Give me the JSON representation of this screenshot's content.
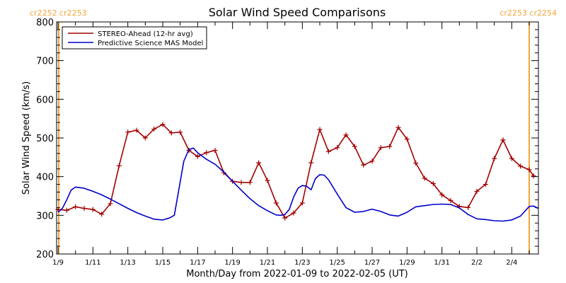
{
  "chart_data": {
    "type": "line",
    "title": "Solar Wind Speed Comparisons",
    "xlabel": "Month/Day from 2022-01-09 to 2022-02-05 (UT)",
    "ylabel": "Solar Wind Speed (km/s)",
    "ylim": [
      200,
      800
    ],
    "xlim": [
      "2022-01-09",
      "2022-02-05"
    ],
    "x_ticks": [
      "1/9",
      "1/11",
      "1/13",
      "1/15",
      "1/17",
      "1/19",
      "1/21",
      "1/23",
      "1/25",
      "1/27",
      "1/29",
      "1/31",
      "2/2",
      "2/4"
    ],
    "y_ticks": [
      "200",
      "300",
      "400",
      "500",
      "600",
      "700",
      "800"
    ],
    "legend_position": "top-left",
    "carrington": {
      "left": "cr2252 cr2253",
      "right": "cr2253 cr2254",
      "color": "#f2a53a"
    },
    "series": [
      {
        "name": "STEREO-Ahead (12-hr avg)",
        "color": "#a40000",
        "marker": "+",
        "points": [
          [
            "2022-01-09",
            315
          ],
          [
            "2022-01-09 12:00",
            313
          ],
          [
            "2022-01-10",
            322
          ],
          [
            "2022-01-10 12:00",
            318
          ],
          [
            "2022-01-11",
            315
          ],
          [
            "2022-01-11 12:00",
            303
          ],
          [
            "2022-01-12",
            330
          ],
          [
            "2022-01-12 12:00",
            428
          ],
          [
            "2022-01-13",
            515
          ],
          [
            "2022-01-13 12:00",
            520
          ],
          [
            "2022-01-14",
            500
          ],
          [
            "2022-01-14 12:00",
            523
          ],
          [
            "2022-01-15",
            535
          ],
          [
            "2022-01-15 12:00",
            513
          ],
          [
            "2022-01-16",
            515
          ],
          [
            "2022-01-16 12:00",
            468
          ],
          [
            "2022-01-17",
            452
          ],
          [
            "2022-01-17 12:00",
            462
          ],
          [
            "2022-01-18",
            468
          ],
          [
            "2022-01-18 12:00",
            410
          ],
          [
            "2022-01-19",
            388
          ],
          [
            "2022-01-19 12:00",
            385
          ],
          [
            "2022-01-20",
            385
          ],
          [
            "2022-01-20 12:00",
            436
          ],
          [
            "2022-01-21",
            390
          ],
          [
            "2022-01-21 12:00",
            332
          ],
          [
            "2022-01-22",
            293
          ],
          [
            "2022-01-22 12:00",
            306
          ],
          [
            "2022-01-23",
            332
          ],
          [
            "2022-01-23 12:00",
            436
          ],
          [
            "2022-01-24",
            522
          ],
          [
            "2022-01-24 12:00",
            465
          ],
          [
            "2022-01-25",
            475
          ],
          [
            "2022-01-25 12:00",
            508
          ],
          [
            "2022-01-26",
            478
          ],
          [
            "2022-01-26 12:00",
            430
          ],
          [
            "2022-01-27",
            440
          ],
          [
            "2022-01-27 12:00",
            475
          ],
          [
            "2022-01-28",
            478
          ],
          [
            "2022-01-28 12:00",
            527
          ],
          [
            "2022-01-29",
            497
          ],
          [
            "2022-01-29 12:00",
            435
          ],
          [
            "2022-01-30",
            396
          ],
          [
            "2022-01-30 12:00",
            382
          ],
          [
            "2022-01-31",
            353
          ],
          [
            "2022-01-31 12:00",
            338
          ],
          [
            "2022-02-01",
            323
          ],
          [
            "2022-02-01 12:00",
            320
          ],
          [
            "2022-02-02",
            362
          ],
          [
            "2022-02-02 12:00",
            380
          ],
          [
            "2022-02-03",
            447
          ],
          [
            "2022-02-03 12:00",
            495
          ],
          [
            "2022-02-04",
            447
          ],
          [
            "2022-02-04 12:00",
            427
          ],
          [
            "2022-02-05",
            418
          ],
          [
            "2022-02-05 06:00",
            402
          ]
        ]
      },
      {
        "name": "Predictive Science MAS Model",
        "color": "#0000cc",
        "points": [
          [
            "2022-01-09",
            308
          ],
          [
            "2022-01-09 06:00",
            318
          ],
          [
            "2022-01-09 12:00",
            340
          ],
          [
            "2022-01-09 18:00",
            365
          ],
          [
            "2022-01-10",
            373
          ],
          [
            "2022-01-10 12:00",
            370
          ],
          [
            "2022-01-11",
            362
          ],
          [
            "2022-01-11 12:00",
            353
          ],
          [
            "2022-01-12",
            342
          ],
          [
            "2022-01-12 12:00",
            330
          ],
          [
            "2022-01-13",
            318
          ],
          [
            "2022-01-13 12:00",
            307
          ],
          [
            "2022-01-14",
            298
          ],
          [
            "2022-01-14 12:00",
            290
          ],
          [
            "2022-01-15",
            288
          ],
          [
            "2022-01-15 09:00",
            293
          ],
          [
            "2022-01-15 16:00",
            300
          ],
          [
            "2022-01-15 23:00",
            375
          ],
          [
            "2022-01-16 05:00",
            440
          ],
          [
            "2022-01-16 12:00",
            470
          ],
          [
            "2022-01-16 18:00",
            474
          ],
          [
            "2022-01-17",
            462
          ],
          [
            "2022-01-17 12:00",
            445
          ],
          [
            "2022-01-18",
            432
          ],
          [
            "2022-01-18 12:00",
            412
          ],
          [
            "2022-01-19",
            388
          ],
          [
            "2022-01-19 12:00",
            365
          ],
          [
            "2022-01-20",
            343
          ],
          [
            "2022-01-20 12:00",
            325
          ],
          [
            "2022-01-21",
            312
          ],
          [
            "2022-01-21 12:00",
            301
          ],
          [
            "2022-01-21 18:00",
            300
          ],
          [
            "2022-01-22",
            302
          ],
          [
            "2022-01-22 06:00",
            315
          ],
          [
            "2022-01-22 12:00",
            347
          ],
          [
            "2022-01-22 18:00",
            370
          ],
          [
            "2022-01-23",
            377
          ],
          [
            "2022-01-23 06:00",
            375
          ],
          [
            "2022-01-23 12:00",
            366
          ],
          [
            "2022-01-23 18:00",
            395
          ],
          [
            "2022-01-24",
            405
          ],
          [
            "2022-01-24 06:00",
            404
          ],
          [
            "2022-01-24 12:00",
            392
          ],
          [
            "2022-01-25",
            355
          ],
          [
            "2022-01-25 12:00",
            320
          ],
          [
            "2022-01-26",
            308
          ],
          [
            "2022-01-26 12:00",
            310
          ],
          [
            "2022-01-27",
            316
          ],
          [
            "2022-01-27 12:00",
            310
          ],
          [
            "2022-01-28",
            301
          ],
          [
            "2022-01-28 12:00",
            298
          ],
          [
            "2022-01-29",
            308
          ],
          [
            "2022-01-29 12:00",
            322
          ],
          [
            "2022-01-30",
            325
          ],
          [
            "2022-01-30 12:00",
            328
          ],
          [
            "2022-01-31",
            329
          ],
          [
            "2022-01-31 12:00",
            328
          ],
          [
            "2022-02-01",
            319
          ],
          [
            "2022-02-01 12:00",
            302
          ],
          [
            "2022-02-02",
            291
          ],
          [
            "2022-02-02 12:00",
            289
          ],
          [
            "2022-02-03",
            286
          ],
          [
            "2022-02-03 12:00",
            285
          ],
          [
            "2022-02-04",
            288
          ],
          [
            "2022-02-04 12:00",
            298
          ],
          [
            "2022-02-05",
            323
          ],
          [
            "2022-02-05 06:00",
            324
          ],
          [
            "2022-02-05 12:00",
            318
          ]
        ]
      }
    ]
  }
}
